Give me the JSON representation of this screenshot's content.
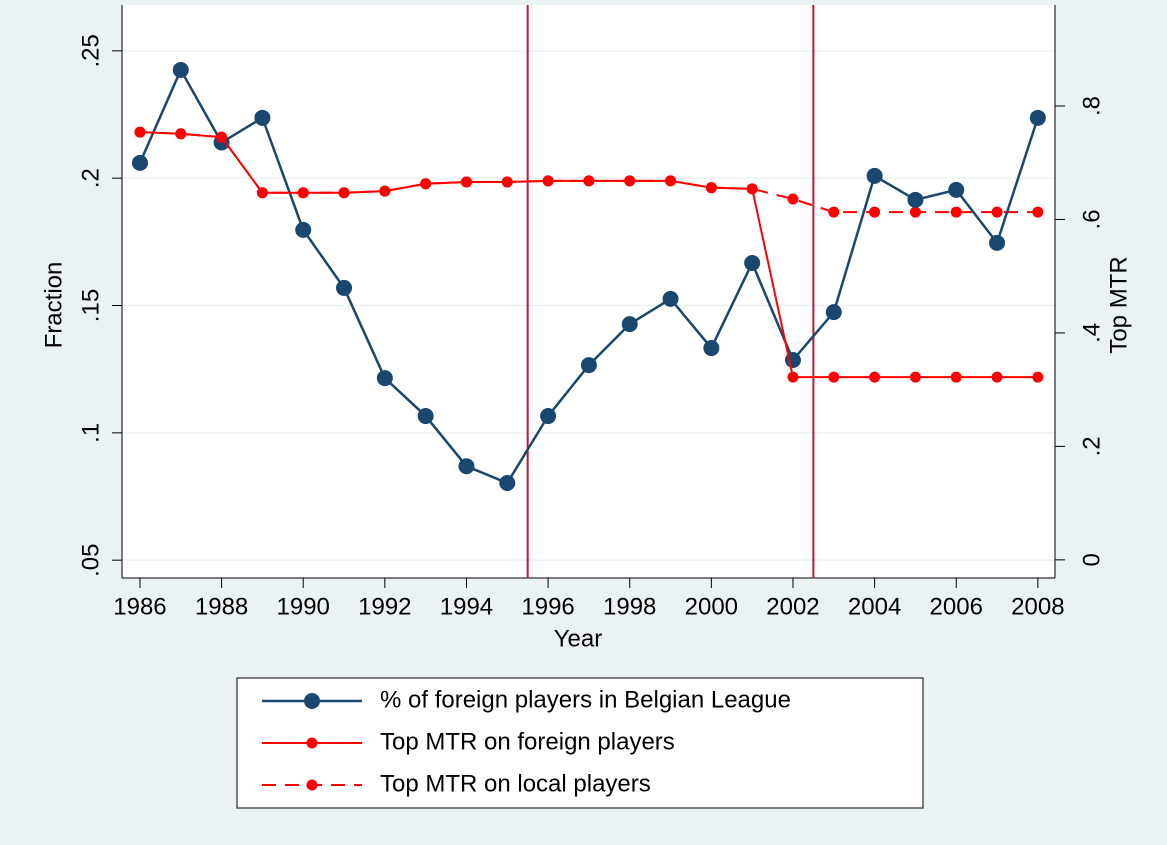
{
  "chart_data": {
    "type": "line",
    "x_label": "Year",
    "y_label": "Fraction",
    "y2_label": "Top MTR",
    "x": [
      1986,
      1987,
      1988,
      1989,
      1990,
      1991,
      1992,
      1993,
      1994,
      1995,
      1996,
      1997,
      1998,
      1999,
      2000,
      2001,
      2002,
      2003,
      2004,
      2005,
      2006,
      2007,
      2008
    ],
    "series": [
      {
        "name": "% of foreign players in Belgian League",
        "color": "#1a476f",
        "axis": "y",
        "dashed": false,
        "values": [
          0.206,
          0.2425,
          0.214,
          0.2237,
          0.1797,
          0.1569,
          0.1215,
          0.1066,
          0.0869,
          0.0803,
          0.1066,
          0.1266,
          0.1427,
          0.1526,
          0.1333,
          0.1667,
          0.1286,
          0.1474,
          0.2009,
          0.1915,
          0.1954,
          0.1746,
          0.2237
        ]
      },
      {
        "name": "Top MTR on foreign players",
        "color": "#ff0000",
        "axis": "y2",
        "dashed": false,
        "values": [
          0.754,
          0.751,
          0.745,
          0.647,
          0.647,
          0.647,
          0.65,
          0.663,
          0.666,
          0.666,
          0.668,
          0.668,
          0.668,
          0.668,
          0.656,
          0.654,
          0.322,
          0.322,
          0.322,
          0.322,
          0.322,
          0.322,
          0.322
        ]
      },
      {
        "name": "Top MTR on local players",
        "color": "#ff0000",
        "axis": "y2",
        "dashed": true,
        "values": [
          0.754,
          0.751,
          0.745,
          0.647,
          0.647,
          0.647,
          0.65,
          0.663,
          0.666,
          0.666,
          0.668,
          0.668,
          0.668,
          0.668,
          0.656,
          0.654,
          0.636,
          0.613,
          0.613,
          0.613,
          0.613,
          0.613,
          0.613
        ]
      }
    ],
    "vlines": [
      1995.5,
      2002.5
    ],
    "vline_color": "#c0143c",
    "xlim": [
      1985.56,
      2008.42
    ],
    "xticks": [
      1986,
      1988,
      1990,
      1992,
      1994,
      1996,
      1998,
      2000,
      2002,
      2004,
      2006,
      2008
    ],
    "ylim": [
      0.043,
      0.268
    ],
    "yticks": [
      {
        "value": 0.05,
        "label": ".05"
      },
      {
        "value": 0.1,
        "label": ".1"
      },
      {
        "value": 0.15,
        "label": ".15"
      },
      {
        "value": 0.2,
        "label": ".2"
      },
      {
        "value": 0.25,
        "label": ".25"
      }
    ],
    "y2lim": [
      -0.032,
      0.978
    ],
    "y2ticks": [
      0,
      {
        "value": 0.2,
        "label": ".2"
      },
      {
        "value": 0.4,
        "label": ".4"
      },
      {
        "value": 0.6,
        "label": ".6"
      },
      {
        "value": 0.8,
        "label": ".8"
      }
    ],
    "grid": true
  }
}
